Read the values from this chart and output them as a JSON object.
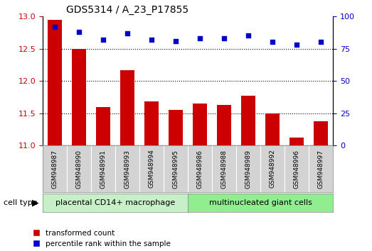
{
  "title": "GDS5314 / A_23_P17855",
  "samples": [
    "GSM948987",
    "GSM948990",
    "GSM948991",
    "GSM948993",
    "GSM948994",
    "GSM948995",
    "GSM948986",
    "GSM948988",
    "GSM948989",
    "GSM948992",
    "GSM948996",
    "GSM948997"
  ],
  "transformed_count": [
    12.95,
    12.5,
    11.6,
    12.17,
    11.68,
    11.55,
    11.65,
    11.63,
    11.77,
    11.5,
    11.12,
    11.38
  ],
  "percentile_rank": [
    92,
    88,
    82,
    87,
    82,
    81,
    83,
    83,
    85,
    80,
    78,
    80
  ],
  "group1_label": "placental CD14+ macrophage",
  "group2_label": "multinucleated giant cells",
  "group1_count": 6,
  "group2_count": 6,
  "ylim_left": [
    11,
    13
  ],
  "ylim_right": [
    0,
    100
  ],
  "yticks_left": [
    11,
    11.5,
    12,
    12.5,
    13
  ],
  "yticks_right": [
    0,
    25,
    50,
    75,
    100
  ],
  "bar_color": "#cc0000",
  "dot_color": "#0000cc",
  "group1_bg": "#c8f0c8",
  "group2_bg": "#90ee90",
  "sample_box_bg": "#d3d3d3",
  "legend_bar_label": "transformed count",
  "legend_dot_label": "percentile rank within the sample",
  "cell_type_label": "cell type"
}
